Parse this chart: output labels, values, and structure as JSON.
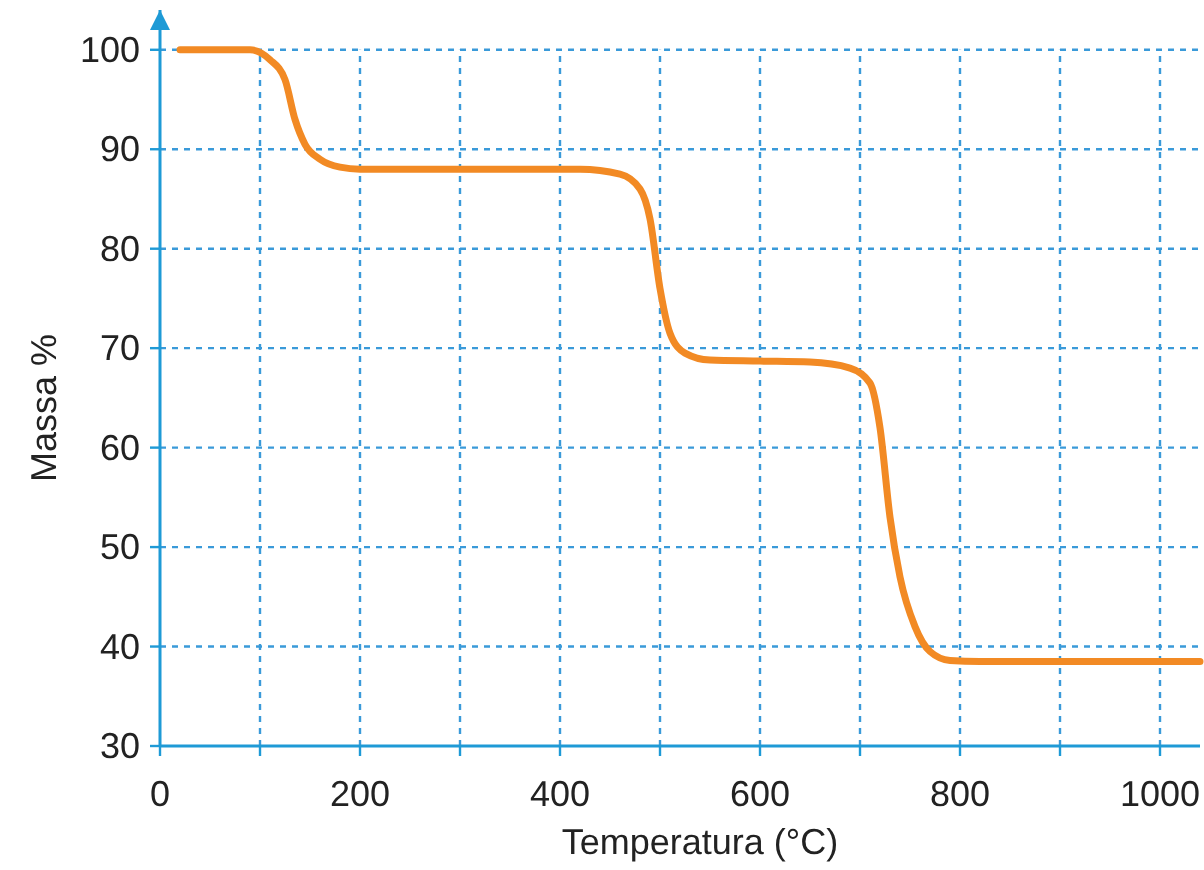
{
  "chart_data": {
    "type": "line",
    "xlabel": "Temperatura (°C)",
    "ylabel": "Massa %",
    "xlim": [
      0,
      1040
    ],
    "ylim": [
      30,
      104
    ],
    "xticks": [
      0,
      {
        "value": 100,
        "label": null
      },
      200,
      {
        "value": 300,
        "label": null
      },
      400,
      {
        "value": 500,
        "label": null
      },
      600,
      {
        "value": 700,
        "label": null
      },
      800,
      {
        "value": 900,
        "label": null
      },
      1000
    ],
    "yticks": [
      30,
      40,
      50,
      60,
      70,
      80,
      90,
      100
    ],
    "grid": true,
    "line_style": "solid",
    "marker": "none",
    "series": [
      {
        "color": "#f28a24",
        "x": [
          20,
          90,
          110,
          125,
          135,
          145,
          160,
          180,
          200,
          300,
          420,
          460,
          480,
          490,
          500,
          510,
          525,
          550,
          600,
          650,
          690,
          710,
          720,
          730,
          740,
          755,
          770,
          790,
          820,
          1040
        ],
        "values": [
          100,
          100,
          99,
          97,
          93,
          90.5,
          89,
          88.2,
          88,
          88,
          88,
          87.5,
          86,
          83,
          76,
          71.5,
          69.5,
          68.8,
          68.7,
          68.6,
          68,
          66.5,
          62,
          53,
          47,
          42,
          39.5,
          38.6,
          38.5,
          38.5
        ]
      }
    ]
  }
}
